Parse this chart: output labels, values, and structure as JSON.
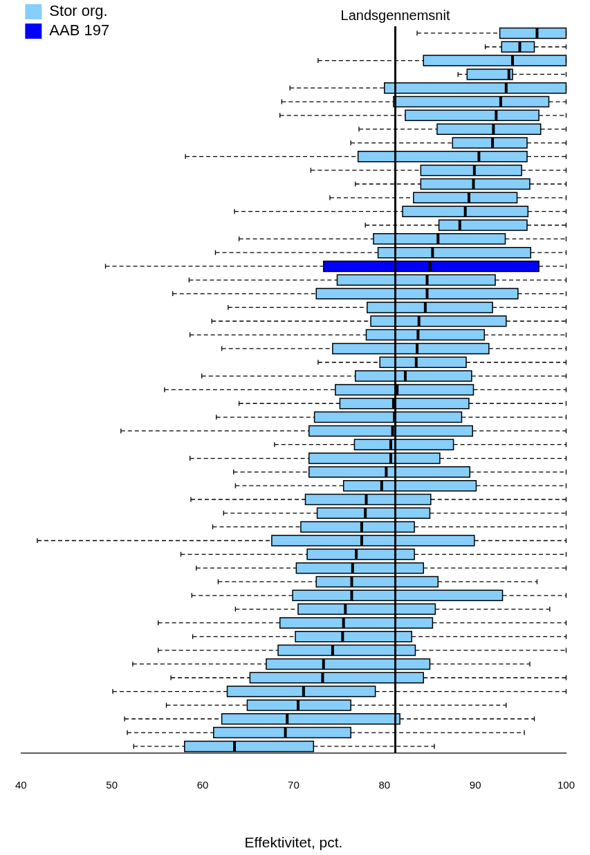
{
  "chart_data": {
    "type": "box",
    "orientation": "horizontal",
    "xlabel": "Effektivitet, pct.",
    "xlim": [
      40,
      100
    ],
    "xticks": [
      40,
      50,
      60,
      70,
      80,
      90,
      100
    ],
    "legend": "top left",
    "categories": [
      null,
      null,
      null,
      null,
      null,
      null,
      null,
      null,
      null,
      null,
      null,
      null,
      null,
      null,
      null,
      null,
      null,
      null,
      null,
      null,
      null,
      null,
      null,
      null,
      null,
      null,
      null,
      null,
      null,
      null,
      null,
      null,
      null,
      null,
      null,
      null,
      null,
      null,
      null,
      null,
      null,
      null,
      null,
      null,
      null,
      null,
      null,
      null,
      null,
      null,
      null,
      null,
      null
    ],
    "ref_lines": [
      {
        "axis": "x",
        "value": 81.2,
        "label": "Landsgennemsnit",
        "color": "#000000"
      }
    ],
    "series": [
      {
        "name": "Stor org.",
        "color": "#87cefa",
        "boxes": [
          {
            "low": 83.6,
            "q1": 92.7,
            "median": 96.8,
            "q3": 100,
            "high": 100
          },
          {
            "low": 91.1,
            "q1": 92.9,
            "median": 94.9,
            "q3": 96.5,
            "high": 100
          },
          {
            "low": 72.7,
            "q1": 84.3,
            "median": 94.1,
            "q3": 100,
            "high": 100
          },
          {
            "low": 88.1,
            "q1": 89.1,
            "median": 93.7,
            "q3": 94.1,
            "high": 100
          },
          {
            "low": 69.6,
            "q1": 80.0,
            "median": 93.4,
            "q3": 100,
            "high": 100
          },
          {
            "low": 68.7,
            "q1": 81.0,
            "median": 92.8,
            "q3": 98.1,
            "high": 100
          },
          {
            "low": 68.5,
            "q1": 82.3,
            "median": 92.3,
            "q3": 97.0,
            "high": 100
          },
          {
            "low": 77.2,
            "q1": 85.8,
            "median": 92.0,
            "q3": 97.2,
            "high": 100
          },
          {
            "low": 76.3,
            "q1": 87.5,
            "median": 91.9,
            "q3": 95.7,
            "high": 100
          },
          {
            "low": 58.1,
            "q1": 77.1,
            "median": 90.4,
            "q3": 95.7,
            "high": 100
          },
          {
            "low": 71.9,
            "q1": 84.0,
            "median": 89.9,
            "q3": 95.1,
            "high": 100
          },
          {
            "low": 76.8,
            "q1": 84.0,
            "median": 89.8,
            "q3": 96.0,
            "high": 100
          },
          {
            "low": 74.0,
            "q1": 83.2,
            "median": 89.3,
            "q3": 94.6,
            "high": 100
          },
          {
            "low": 63.5,
            "q1": 82.0,
            "median": 88.9,
            "q3": 95.8,
            "high": 100
          },
          {
            "low": 77.9,
            "q1": 86.0,
            "median": 88.3,
            "q3": 95.7,
            "high": 100
          },
          {
            "low": 64.0,
            "q1": 78.8,
            "median": 85.9,
            "q3": 93.3,
            "high": 100
          },
          {
            "low": 61.4,
            "q1": 79.3,
            "median": 85.3,
            "q3": 96.1,
            "high": 100
          },
          null,
          {
            "low": 58.5,
            "q1": 74.8,
            "median": 84.7,
            "q3": 92.2,
            "high": 100
          },
          {
            "low": 56.7,
            "q1": 72.5,
            "median": 84.7,
            "q3": 94.7,
            "high": 100
          },
          {
            "low": 62.8,
            "q1": 78.1,
            "median": 84.5,
            "q3": 91.9,
            "high": 100
          },
          {
            "low": 61.0,
            "q1": 78.5,
            "median": 83.8,
            "q3": 93.4,
            "high": 100
          },
          {
            "low": 58.6,
            "q1": 78.0,
            "median": 83.7,
            "q3": 91.0,
            "high": 100
          },
          {
            "low": 62.1,
            "q1": 74.3,
            "median": 83.6,
            "q3": 91.5,
            "high": 100
          },
          {
            "low": 72.7,
            "q1": 79.5,
            "median": 83.5,
            "q3": 89.0,
            "high": 100
          },
          {
            "low": 59.9,
            "q1": 76.8,
            "median": 82.3,
            "q3": 89.6,
            "high": 100
          },
          {
            "low": 55.8,
            "q1": 74.6,
            "median": 81.4,
            "q3": 89.8,
            "high": 100
          },
          {
            "low": 64.0,
            "q1": 75.1,
            "median": 81.0,
            "q3": 89.3,
            "high": 100
          },
          {
            "low": 61.5,
            "q1": 72.3,
            "median": 81.1,
            "q3": 88.5,
            "high": 100
          },
          {
            "low": 51.0,
            "q1": 71.7,
            "median": 80.9,
            "q3": 89.7,
            "high": 100
          },
          {
            "low": 67.9,
            "q1": 76.7,
            "median": 80.7,
            "q3": 87.6,
            "high": 100
          },
          {
            "low": 58.6,
            "q1": 71.7,
            "median": 80.7,
            "q3": 86.1,
            "high": 100
          },
          {
            "low": 63.4,
            "q1": 71.7,
            "median": 80.2,
            "q3": 89.4,
            "high": 100
          },
          {
            "low": 63.6,
            "q1": 75.5,
            "median": 79.7,
            "q3": 90.1,
            "high": 100
          },
          {
            "low": 58.7,
            "q1": 71.3,
            "median": 78.0,
            "q3": 85.1,
            "high": 100
          },
          {
            "low": 62.3,
            "q1": 72.6,
            "median": 77.9,
            "q3": 85.0,
            "high": 100
          },
          {
            "low": 61.1,
            "q1": 70.8,
            "median": 77.5,
            "q3": 83.3,
            "high": 100
          },
          {
            "low": 41.8,
            "q1": 67.6,
            "median": 77.5,
            "q3": 89.9,
            "high": 100
          },
          {
            "low": 57.6,
            "q1": 71.5,
            "median": 76.9,
            "q3": 83.3,
            "high": 100
          },
          {
            "low": 59.3,
            "q1": 70.3,
            "median": 76.5,
            "q3": 84.3,
            "high": 100
          },
          {
            "low": 61.7,
            "q1": 72.5,
            "median": 76.4,
            "q3": 85.9,
            "high": 96.8
          },
          {
            "low": 58.8,
            "q1": 69.9,
            "median": 76.4,
            "q3": 93.0,
            "high": 100
          },
          {
            "low": 63.6,
            "q1": 70.5,
            "median": 75.7,
            "q3": 85.6,
            "high": 98.2
          },
          {
            "low": 55.1,
            "q1": 68.5,
            "median": 75.5,
            "q3": 85.3,
            "high": 100
          },
          {
            "low": 58.9,
            "q1": 70.2,
            "median": 75.4,
            "q3": 83.0,
            "high": 100
          },
          {
            "low": 55.1,
            "q1": 68.3,
            "median": 74.3,
            "q3": 83.4,
            "high": 100
          },
          {
            "low": 52.3,
            "q1": 67.0,
            "median": 73.3,
            "q3": 85.0,
            "high": 96.0
          },
          {
            "low": 56.5,
            "q1": 65.2,
            "median": 73.2,
            "q3": 84.3,
            "high": 100
          },
          {
            "low": 50.1,
            "q1": 62.7,
            "median": 71.1,
            "q3": 79.0,
            "high": 100
          },
          {
            "low": 56.0,
            "q1": 64.9,
            "median": 70.5,
            "q3": 76.3,
            "high": 93.4
          },
          {
            "low": 51.4,
            "q1": 62.1,
            "median": 69.3,
            "q3": 81.7,
            "high": 96.5
          },
          {
            "low": 51.7,
            "q1": 61.2,
            "median": 69.1,
            "q3": 76.3,
            "high": 95.4
          },
          {
            "low": 52.4,
            "q1": 58.0,
            "median": 63.5,
            "q3": 72.2,
            "high": 85.5
          }
        ]
      },
      {
        "name": "AAB 197",
        "color": "#0000ff",
        "boxes": [
          null,
          null,
          null,
          null,
          null,
          null,
          null,
          null,
          null,
          null,
          null,
          null,
          null,
          null,
          null,
          null,
          null,
          {
            "low": 49.3,
            "q1": 73.3,
            "median": 85.0,
            "q3": 97.0,
            "high": 100
          },
          null,
          null,
          null,
          null,
          null,
          null,
          null,
          null,
          null,
          null,
          null,
          null,
          null,
          null,
          null,
          null,
          null,
          null,
          null,
          null,
          null,
          null,
          null,
          null,
          null,
          null,
          null,
          null,
          null,
          null,
          null,
          null,
          null,
          null,
          null
        ]
      }
    ]
  }
}
